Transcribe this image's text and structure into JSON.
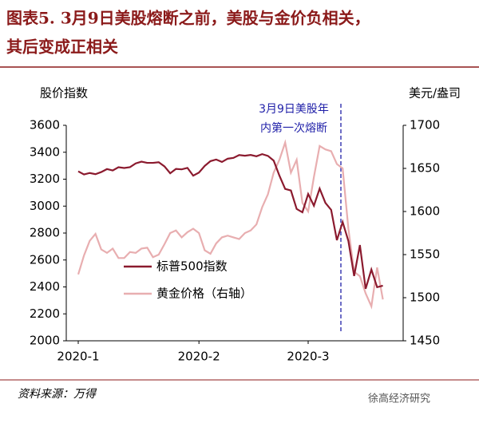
{
  "chart_data": {
    "type": "line",
    "title": [
      "图表5. 3月9日美股熔断之前，美股与金价负相关，",
      "其后变成正相关"
    ],
    "y_label": "股价指数",
    "y2_label": "美元/盎司",
    "annotation": [
      "3月9日美股年",
      "内第一次熔断"
    ],
    "source": "资料来源：万得",
    "watermark": "徐高经济研究",
    "categories": [
      "2020-1",
      null,
      null,
      null,
      null,
      null,
      null,
      null,
      null,
      null,
      null,
      null,
      null,
      null,
      null,
      null,
      null,
      null,
      null,
      null,
      null,
      "2020-2",
      null,
      null,
      null,
      null,
      null,
      null,
      null,
      null,
      null,
      null,
      null,
      null,
      null,
      null,
      null,
      null,
      null,
      null,
      "2020-3",
      null,
      null,
      null,
      null,
      null,
      null,
      null,
      null,
      null,
      null,
      null,
      null,
      null
    ],
    "series": [
      {
        "name": "标普500指数",
        "color": "#8b1a2e",
        "values": [
          3258,
          3235,
          3246,
          3237,
          3253,
          3275,
          3265,
          3289,
          3283,
          3289,
          3317,
          3330,
          3321,
          3321,
          3326,
          3295,
          3244,
          3276,
          3273,
          3284,
          3226,
          3249,
          3298,
          3334,
          3346,
          3328,
          3352,
          3358,
          3379,
          3374,
          3380,
          3370,
          3386,
          3373,
          3338,
          3226,
          3128,
          3116,
          2979,
          2954,
          3090,
          3003,
          3130,
          3024,
          2972,
          2747,
          2882,
          2741,
          2481,
          2711,
          2386,
          2529,
          2398,
          2409
        ]
      },
      {
        "name": "黄金价格（右轴）",
        "color": "#e8aeb0",
        "axis": "y2",
        "values": [
          1527,
          1549,
          1566,
          1574,
          1556,
          1552,
          1557,
          1546,
          1546,
          1553,
          1552,
          1557,
          1558,
          1547,
          1550,
          1562,
          1575,
          1578,
          1570,
          1576,
          1580,
          1575,
          1555,
          1551,
          1563,
          1570,
          1572,
          1570,
          1568,
          1575,
          1578,
          1585,
          1605,
          1620,
          1645,
          1660,
          1680,
          1645,
          1660,
          1610,
          1600,
          1640,
          1676,
          1672,
          1670,
          1655,
          1650,
          1580,
          1530,
          1525,
          1505,
          1490,
          1535,
          1498
        ]
      }
    ],
    "ylim": [
      2000,
      3600
    ],
    "yticks": [
      2000,
      2200,
      2400,
      2600,
      2800,
      3000,
      3200,
      3400,
      3600
    ],
    "y2lim": [
      1450,
      1700
    ],
    "y2ticks": [
      1450,
      1500,
      1550,
      1600,
      1650,
      1700
    ]
  }
}
